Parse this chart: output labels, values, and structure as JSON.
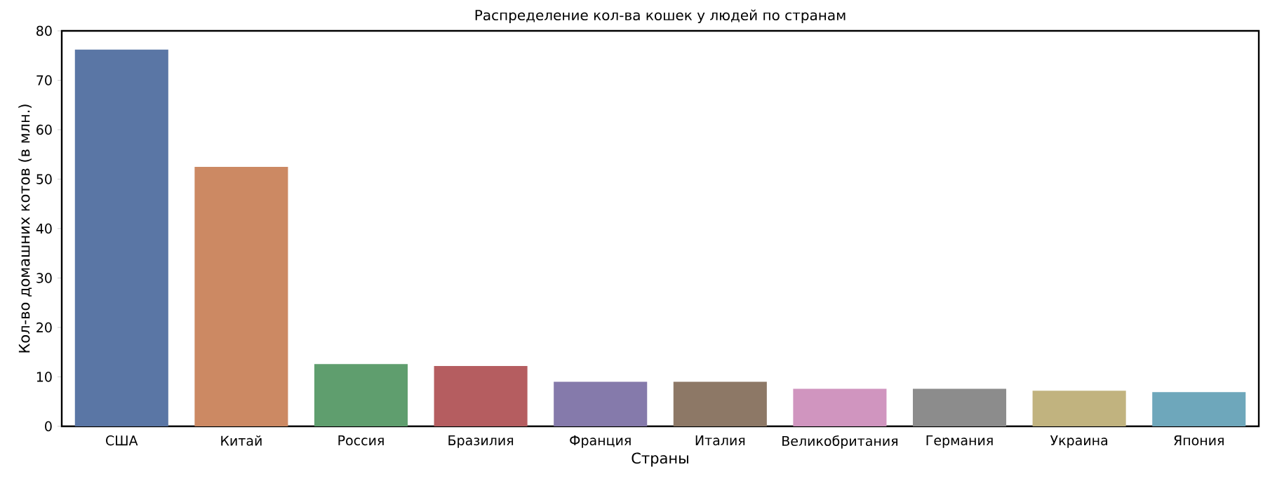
{
  "chart_data": {
    "type": "bar",
    "title": "Распределение кол-ва кошек у людей по странам",
    "xlabel": "Страны",
    "ylabel": "Кол-во домашних котов (в млн.)",
    "categories": [
      "США",
      "Китай",
      "Россия",
      "Бразилия",
      "Франция",
      "Италия",
      "Великобритания",
      "Германия",
      "Украина",
      "Япония"
    ],
    "values": [
      76.2,
      52.5,
      12.6,
      12.2,
      9.0,
      9.0,
      7.6,
      7.6,
      7.2,
      6.9
    ],
    "colors": [
      "#5a76a5",
      "#cc8963",
      "#5f9e6e",
      "#b55d60",
      "#857aab",
      "#8d7866",
      "#d095bf",
      "#8c8c8c",
      "#c1b37f",
      "#6ea7bb"
    ],
    "ylim": [
      0,
      80
    ],
    "yticks": [
      0,
      10,
      20,
      30,
      40,
      50,
      60,
      70,
      80
    ],
    "grid": false
  }
}
